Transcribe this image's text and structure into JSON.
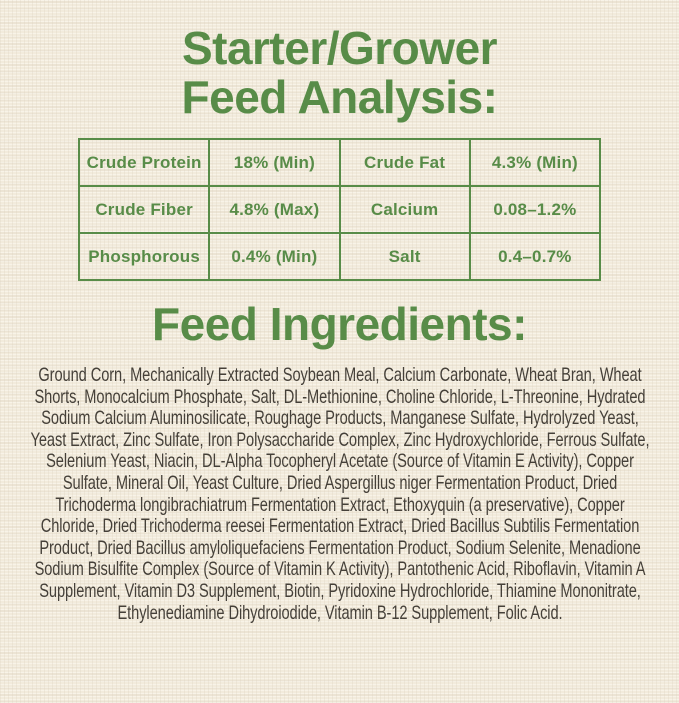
{
  "theme": {
    "accent_green": "#588c48",
    "background_cream": "#f2ebdc",
    "ink": "#454039"
  },
  "title": {
    "line1": "Starter/Grower",
    "line2": "Feed Analysis:"
  },
  "analysis_table": {
    "rows": [
      [
        "Crude Protein",
        "18% (Min)",
        "Crude Fat",
        "4.3% (Min)"
      ],
      [
        "Crude Fiber",
        "4.8% (Max)",
        "Calcium",
        "0.08–1.2%"
      ],
      [
        "Phosphorous",
        "0.4% (Min)",
        "Salt",
        "0.4–0.7%"
      ]
    ]
  },
  "ingredients": {
    "heading": "Feed Ingredients:",
    "text": "Ground Corn, Mechanically Extracted Soybean Meal, Calcium Carbonate, Wheat Bran, Wheat Shorts, Monocalcium Phosphate, Salt, DL-Methionine, Choline Chloride, L-Threonine, Hydrated Sodium Calcium Aluminosilicate, Roughage Products, Manganese Sulfate, Hydrolyzed Yeast, Yeast Extract, Zinc Sulfate, Iron Polysaccharide Complex, Zinc Hydroxychloride, Ferrous Sulfate, Selenium Yeast, Niacin, DL-Alpha Tocopheryl Acetate (Source of Vitamin E Activity), Copper Sulfate, Mineral Oil, Yeast Culture, Dried Aspergillus niger Fermentation Product, Dried Trichoderma longibrachiatrum Fermentation Extract, Ethoxyquin (a preservative), Copper Chloride, Dried Trichoderma reesei Fermentation Extract, Dried Bacillus Subtilis Fermentation Product, Dried Bacillus amyloliquefaciens Fermentation Product, Sodium Selenite, Menadione Sodium Bisulfite Complex (Source of Vitamin K Activity), Pantothenic Acid, Riboflavin, Vitamin A Supplement, Vitamin D3 Supplement, Biotin, Pyridoxine Hydrochloride, Thiamine Mononitrate, Ethylenediamine Dihydroiodide, Vitamin B-12 Supplement, Folic Acid."
  }
}
